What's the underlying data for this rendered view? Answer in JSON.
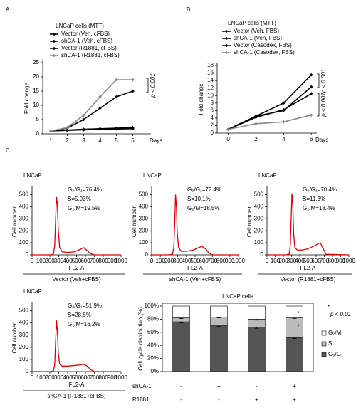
{
  "chart_data": [
    {
      "type": "line",
      "panel_label": "A",
      "title": "LNCaP cells (MTT)",
      "ylabel": "Fold change",
      "xlabel": "Days",
      "categories": [
        "1",
        "2",
        "3",
        "4",
        "5",
        "6"
      ],
      "ylim": [
        0,
        25
      ],
      "yticks": [
        0,
        5,
        10,
        15,
        20,
        25
      ],
      "series": [
        {
          "name": "Vector (Veh, cFBS)",
          "color": "#000000",
          "values": [
            1,
            1.3,
            1.6,
            1.8,
            2.0,
            2.2
          ]
        },
        {
          "name": "shCA-1 (Veh, cFBS)",
          "color": "#000000",
          "values": [
            1,
            1.2,
            1.4,
            1.6,
            1.7,
            1.8
          ]
        },
        {
          "name": "Vector (R1881, cFBS)",
          "color": "#000000",
          "values": [
            1,
            2,
            5,
            9,
            13,
            15
          ]
        },
        {
          "name": "shCA-1 (R1881, cFBS)",
          "color": "#888888",
          "values": [
            1,
            2.2,
            6.5,
            13,
            19,
            19
          ]
        }
      ],
      "annotations": [
        "p < 0.001"
      ]
    },
    {
      "type": "line",
      "panel_label": "B",
      "title": "LNCaP cells (MTT)",
      "ylabel": "Fold change",
      "xlabel": "Days",
      "x": [
        0,
        2,
        4,
        6
      ],
      "xlim": [
        -0.8,
        6.4
      ],
      "xticks": [
        0,
        2,
        4,
        6
      ],
      "ylim": [
        0,
        18
      ],
      "yticks": [
        0,
        2,
        4,
        6,
        8,
        10,
        12,
        14,
        16,
        18
      ],
      "series": [
        {
          "name": "Vector (Veh, FBS)",
          "color": "#000000",
          "values": [
            1,
            4.5,
            8,
            15.5
          ]
        },
        {
          "name": "shCA-1 (Veh, FBS)",
          "color": "#000000",
          "values": [
            1,
            4.5,
            6,
            12.3
          ]
        },
        {
          "name": "Vector (Casodex, FBS)",
          "color": "#000000",
          "values": [
            1,
            4.2,
            6.2,
            10.5
          ]
        },
        {
          "name": "shCA-1 (Casodex, FBS)",
          "color": "#888888",
          "values": [
            1,
            2.5,
            3,
            4.8
          ]
        }
      ],
      "annotations": [
        "p < 0.001",
        "p < 0.001"
      ]
    },
    {
      "type": "line",
      "panel_label": "C",
      "title": "LNCaP",
      "ylabel": "Cell number",
      "xlabel": "FL2-A",
      "caption": "Vector (Veh+cFBS)",
      "annotations": [
        "G₀/G₁=76.4%",
        "S=5.93%",
        "G₂/M=19.5%"
      ],
      "x": [
        0,
        200,
        240,
        255,
        265,
        275,
        285,
        295,
        310,
        340,
        400,
        480,
        540,
        580,
        620,
        660,
        700,
        1000
      ],
      "xlim": [
        0,
        1000
      ],
      "xticks": [
        0,
        100,
        200,
        300,
        400,
        500,
        600,
        700,
        800,
        900,
        1000
      ],
      "ylim": [
        0,
        550
      ],
      "yticks": [
        0,
        100,
        200,
        300,
        400,
        500
      ],
      "series": [
        {
          "color": "#e00000",
          "values": [
            0,
            0,
            5,
            80,
            300,
            480,
            420,
            200,
            60,
            25,
            20,
            25,
            45,
            60,
            35,
            10,
            0,
            0
          ]
        }
      ]
    },
    {
      "type": "line",
      "title": "LNCaP",
      "ylabel": "Cell number",
      "xlabel": "FL2-A",
      "caption": "shCA-1 (Veh+cFBS)",
      "annotations": [
        "G₀/G₁=72.4%",
        "S=10.1%",
        "G₂/M=18.5%"
      ],
      "x": [
        0,
        200,
        240,
        255,
        265,
        275,
        285,
        295,
        310,
        340,
        400,
        480,
        540,
        580,
        620,
        660,
        700,
        1000
      ],
      "xlim": [
        0,
        1000
      ],
      "xticks": [
        0,
        100,
        200,
        300,
        400,
        500,
        600,
        700,
        800,
        900,
        1000
      ],
      "ylim": [
        0,
        550
      ],
      "yticks": [
        0,
        100,
        200,
        300,
        400,
        500
      ],
      "series": [
        {
          "color": "#e00000",
          "values": [
            0,
            0,
            5,
            60,
            250,
            500,
            400,
            180,
            60,
            30,
            30,
            40,
            60,
            70,
            50,
            15,
            0,
            0
          ]
        }
      ]
    },
    {
      "type": "line",
      "title": "LNCaP",
      "ylabel": "Cell number",
      "xlabel": "FL2-A",
      "caption": "Vector (R1881+cFBS)",
      "annotations": [
        "G₀/G₁=70.4%",
        "S=11.3%",
        "G₂/M=18.4%"
      ],
      "x": [
        0,
        230,
        270,
        285,
        295,
        305,
        315,
        325,
        340,
        370,
        430,
        500,
        580,
        620,
        650,
        680,
        720,
        1000
      ],
      "xlim": [
        0,
        1000
      ],
      "xticks": [
        0,
        100,
        200,
        300,
        400,
        500,
        600,
        700,
        800,
        900,
        1000
      ],
      "ylim": [
        0,
        550
      ],
      "yticks": [
        0,
        100,
        200,
        300,
        400,
        500
      ],
      "series": [
        {
          "color": "#e00000",
          "values": [
            0,
            0,
            5,
            80,
            300,
            510,
            420,
            180,
            60,
            40,
            40,
            50,
            75,
            90,
            100,
            60,
            5,
            0
          ]
        }
      ]
    },
    {
      "type": "line",
      "title": "LNCaP",
      "ylabel": "Cell number",
      "xlabel": "FL2-A",
      "caption": "shCA-1 (R1881+cFBS)",
      "annotations": [
        "G₀/G₁=51.9%",
        "S=28.8%",
        "G₂/M=16.2%"
      ],
      "x": [
        0,
        200,
        240,
        255,
        265,
        275,
        285,
        295,
        310,
        340,
        400,
        480,
        540,
        580,
        620,
        660,
        700,
        1000
      ],
      "xlim": [
        0,
        1000
      ],
      "xticks": [
        0,
        100,
        200,
        300,
        400,
        500,
        600,
        700,
        800,
        900,
        1000
      ],
      "ylim": [
        0,
        550
      ],
      "yticks": [
        0,
        100,
        200,
        300,
        400,
        500
      ],
      "series": [
        {
          "color": "#e00000",
          "values": [
            0,
            0,
            5,
            60,
            250,
            420,
            330,
            150,
            60,
            45,
            45,
            50,
            55,
            60,
            45,
            15,
            0,
            0
          ]
        }
      ]
    },
    {
      "type": "bar",
      "stacked": true,
      "title": "LNCaP cells",
      "ylabel": "Cell cycle distribution (%)",
      "ylim": [
        0,
        100
      ],
      "yticks": [
        {
          "value": 0,
          "label": "0%"
        },
        {
          "value": 20,
          "label": "20%"
        },
        {
          "value": 40,
          "label": "40%"
        },
        {
          "value": 60,
          "label": "60%"
        },
        {
          "value": 80,
          "label": "80%"
        },
        {
          "value": 100,
          "label": "100%"
        }
      ],
      "series": [
        {
          "name": "G₀/G₁",
          "color": "#555555",
          "values": [
            76,
            70,
            68,
            52
          ],
          "errors": [
            1.5,
            1,
            2,
            1.5
          ]
        },
        {
          "name": "S",
          "color": "#bbbbbb",
          "values": [
            6,
            13,
            12,
            30
          ],
          "errors": [
            1,
            1,
            1.5,
            1
          ]
        },
        {
          "name": "G₂/M",
          "color": "#ffffff",
          "values": [
            18,
            17,
            20,
            18
          ]
        }
      ],
      "conditions": [
        {
          "label": "shCA-1",
          "values": [
            "-",
            "+",
            "-",
            "+"
          ]
        },
        {
          "label": "R1881",
          "values": [
            "-",
            "-",
            "+",
            "+"
          ]
        }
      ],
      "annotations": [
        "*",
        "*",
        "*",
        "p < 0.01"
      ]
    }
  ]
}
